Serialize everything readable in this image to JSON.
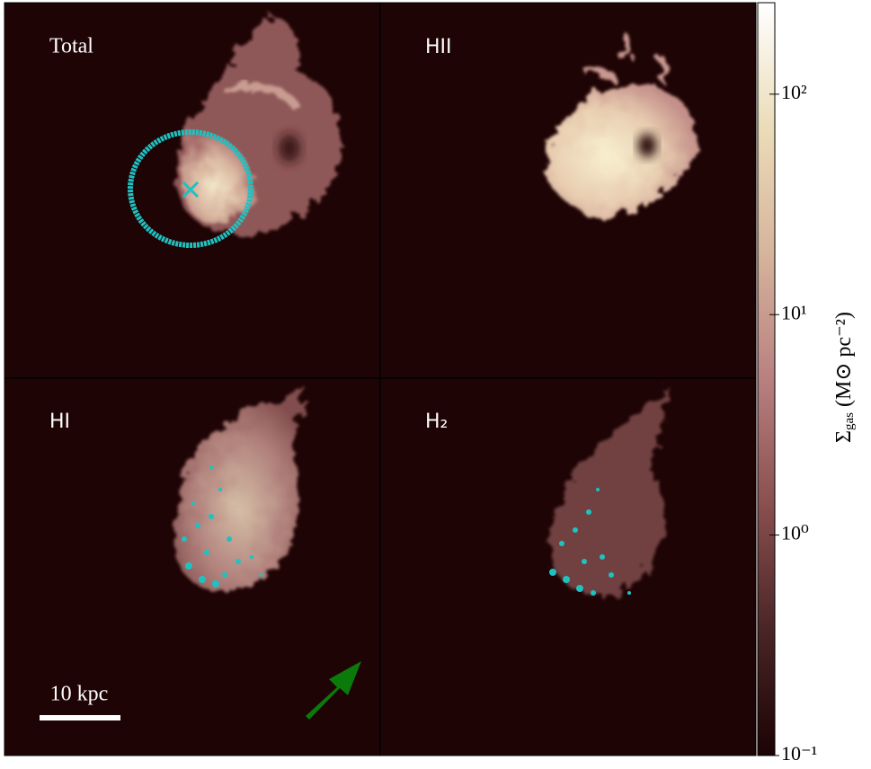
{
  "chart_data": {
    "type": "image",
    "panels": [
      {
        "label": "Total"
      },
      {
        "label": "HII"
      },
      {
        "label": "HI"
      },
      {
        "label": "H₂"
      }
    ],
    "scale_bar": "10 kpc",
    "colorbar": {
      "label_symbol": "Σ",
      "label_subscript": "gas",
      "label_unit": "(M⊙ pc⁻²)",
      "log_scale": true,
      "zlim": [
        0.1,
        260
      ],
      "zticks": [
        {
          "value": 0.1,
          "label": "10⁻¹"
        },
        {
          "value": 1,
          "label": "10⁰"
        },
        {
          "value": 10,
          "label": "10¹"
        },
        {
          "value": 100,
          "label": "10²"
        }
      ],
      "colormap": [
        "#1c0304",
        "#4a2526",
        "#8a4f4f",
        "#b88080",
        "#d6b49c",
        "#ebdcb8",
        "#ffffff"
      ]
    }
  }
}
